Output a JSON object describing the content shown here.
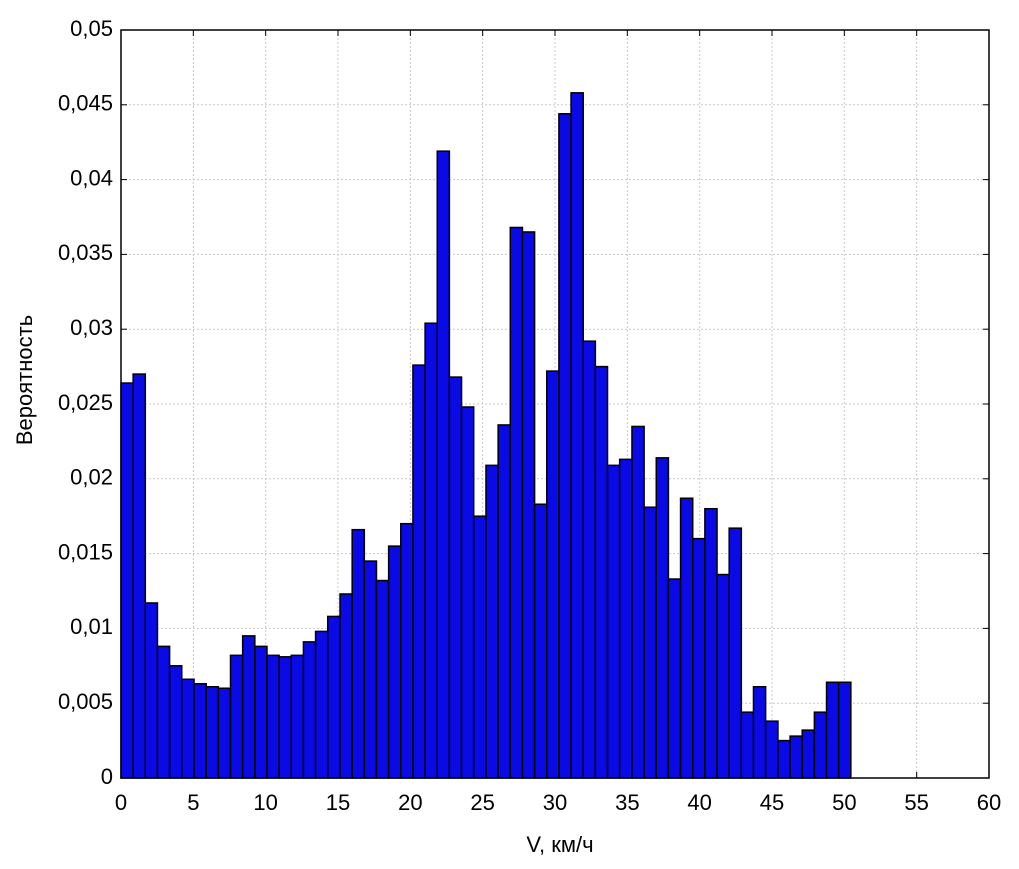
{
  "chart_data": {
    "type": "histogram",
    "xlabel": "V, км/ч",
    "ylabel": "Вероятность",
    "bins": [
      0,
      0.84,
      1.68,
      2.52,
      3.36,
      4.2,
      5.05,
      5.89,
      6.73,
      7.57,
      8.41,
      9.25,
      10.09,
      10.93,
      11.77,
      12.61,
      13.45,
      14.29,
      15.14,
      15.98,
      16.82,
      17.66,
      18.5,
      19.34,
      20.18,
      21.02,
      21.86,
      22.7,
      23.54,
      24.38,
      25.23,
      26.07,
      26.91,
      27.75,
      28.59,
      29.43,
      30.27,
      31.11,
      31.95,
      32.79,
      33.63,
      34.47,
      35.32,
      36.16,
      37.0,
      37.84,
      38.68,
      39.52,
      40.36,
      41.2,
      42.04,
      42.88,
      43.72,
      44.56,
      45.41,
      46.25,
      47.09,
      47.93,
      48.77,
      49.61,
      50.45
    ],
    "values": [
      0.0264,
      0.027,
      0.0117,
      0.0088,
      0.0075,
      0.0066,
      0.0063,
      0.0061,
      0.006,
      0.0082,
      0.0095,
      0.0088,
      0.0082,
      0.0081,
      0.0082,
      0.0091,
      0.0098,
      0.0108,
      0.0123,
      0.0166,
      0.0145,
      0.0132,
      0.0155,
      0.017,
      0.0276,
      0.0304,
      0.0419,
      0.0268,
      0.0248,
      0.0175,
      0.0209,
      0.0236,
      0.0368,
      0.0365,
      0.0183,
      0.0272,
      0.0444,
      0.0458,
      0.0292,
      0.0275,
      0.0209,
      0.0213,
      0.0235,
      0.0181,
      0.0214,
      0.0133,
      0.0187,
      0.016,
      0.018,
      0.0136,
      0.0167,
      0.0044,
      0.0061,
      0.0038,
      0.0025,
      0.0028,
      0.0032,
      0.0044,
      0.0064,
      0.0064
    ],
    "color": "#0a0ae6",
    "xlim": [
      0,
      60
    ],
    "xticks": [
      0,
      5,
      10,
      15,
      20,
      25,
      30,
      35,
      40,
      45,
      50,
      55,
      60
    ],
    "ylim": [
      0,
      0.05
    ],
    "yticks": [
      0,
      {
        "value": 0.005,
        "label": "0,005"
      },
      {
        "value": 0.01,
        "label": "0,01"
      },
      {
        "value": 0.015,
        "label": "0,015"
      },
      {
        "value": 0.02,
        "label": "0,02"
      },
      {
        "value": 0.025,
        "label": "0,025"
      },
      {
        "value": 0.03,
        "label": "0,03"
      },
      {
        "value": 0.035,
        "label": "0,035"
      },
      {
        "value": 0.04,
        "label": "0,04"
      },
      {
        "value": 0.045,
        "label": "0,045"
      },
      {
        "value": 0.05,
        "label": "0,05"
      }
    ],
    "grid": true
  }
}
